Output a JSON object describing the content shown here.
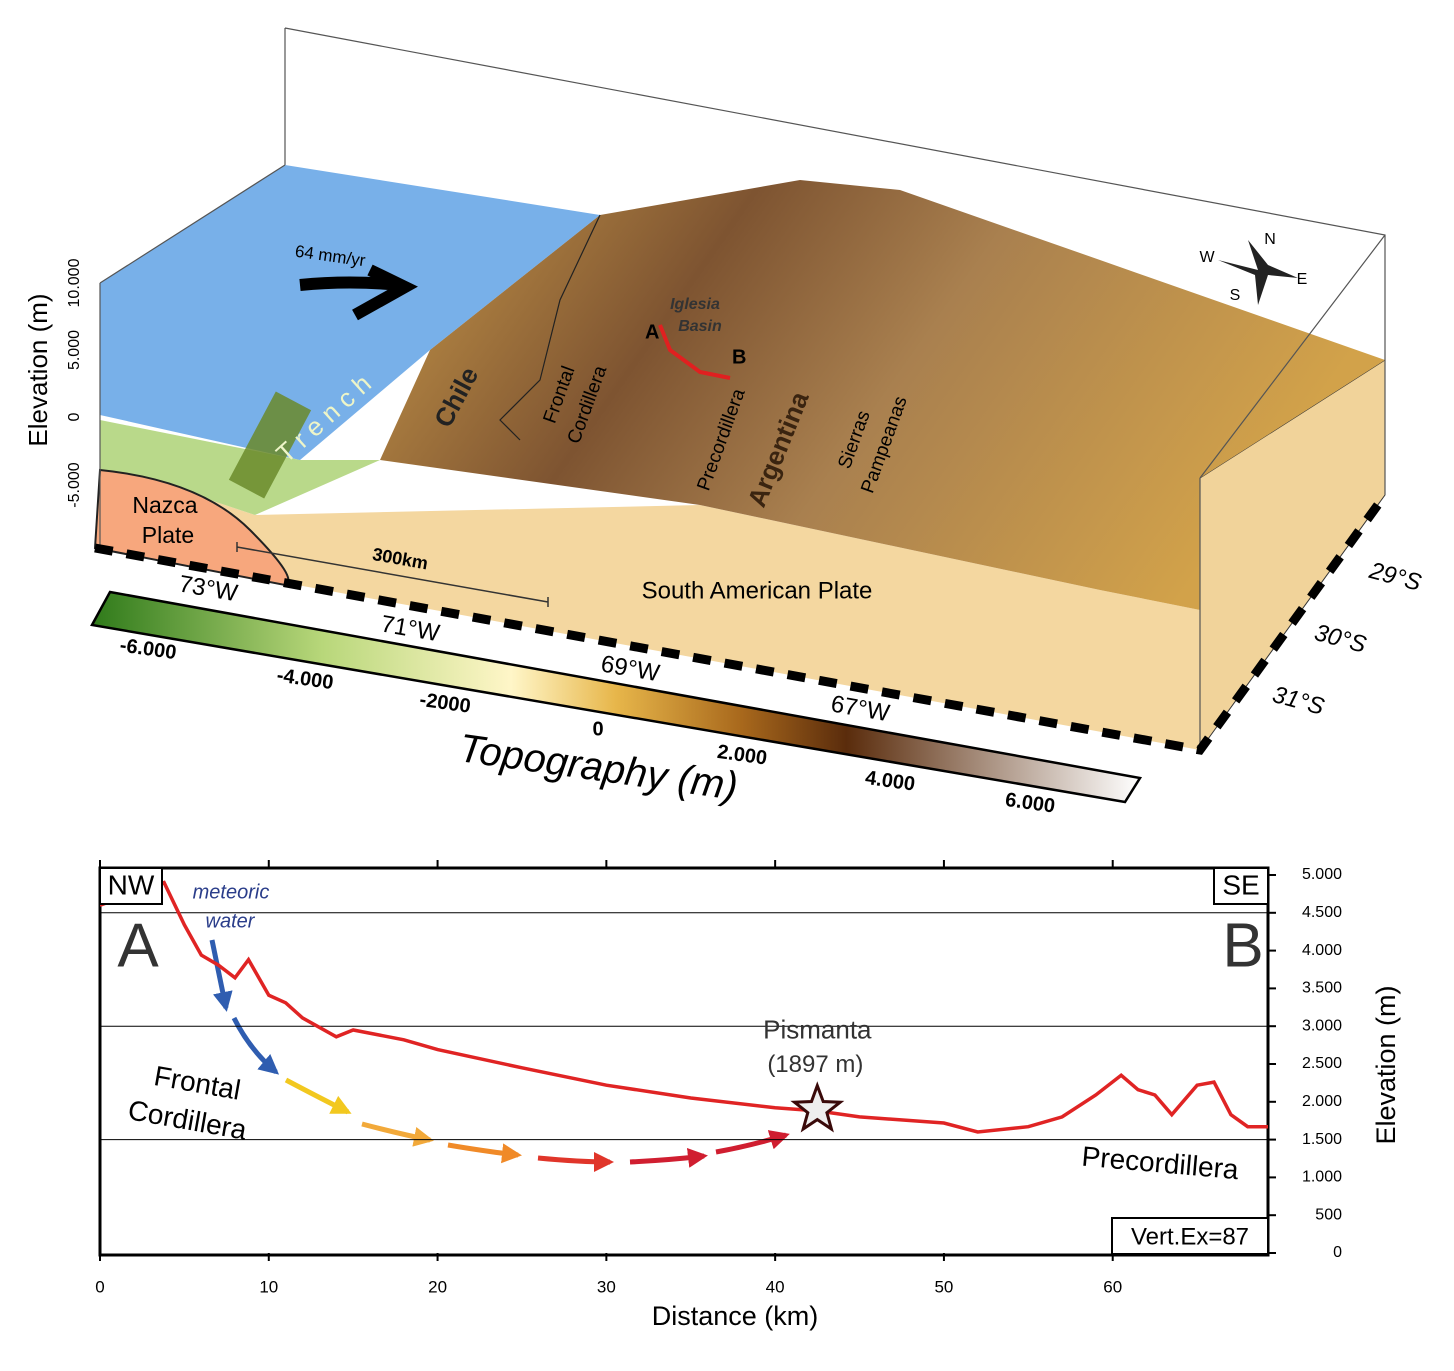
{
  "block_diagram": {
    "elevation_axis_label": "Elevation (m)",
    "elevation_ticks": [
      "10.000",
      "5.000",
      "0",
      "-5.000"
    ],
    "plate_rate": "64 mm/yr",
    "trench": "T r e n c h",
    "chile": "Chile",
    "frontal_cordillera": [
      "Frontal",
      "Cordillera"
    ],
    "iglesia_basin": [
      "Iglesia",
      "Basin"
    ],
    "point_a": "A",
    "point_b": "B",
    "precordillera": "Precordillera",
    "argentina": "Argentina",
    "sierras_pampeanas": [
      "Sierras",
      "Pampeanas"
    ],
    "nazca_plate": [
      "Nazca",
      "Plate"
    ],
    "scale_bar": "300km",
    "south_american_plate": "South American Plate",
    "longitudes": [
      "73°W",
      "71°W",
      "69°W",
      "67°W"
    ],
    "latitudes": [
      "29°S",
      "30°S",
      "31°S"
    ],
    "compass": [
      "N",
      "E",
      "S",
      "W"
    ],
    "colorbar_labels": [
      "-6.000",
      "-4.000",
      "-2000",
      "0",
      "2.000",
      "4.000",
      "6.000"
    ],
    "colorbar_title": "Topography (m)"
  },
  "chart_data": {
    "type": "line",
    "color": "#e02424",
    "x": [
      0,
      3.8,
      5,
      6,
      7,
      8,
      8.8,
      10,
      11,
      12,
      14,
      15,
      18,
      20,
      25,
      30,
      35,
      40,
      42.5,
      45,
      50,
      52,
      55,
      57,
      59,
      60.5,
      61.5,
      62.5,
      63.5,
      65,
      66,
      67,
      68,
      69.2
    ],
    "values": [
      4600,
      4900,
      4340,
      3940,
      3810,
      3640,
      3880,
      3410,
      3310,
      3110,
      2860,
      2950,
      2820,
      2690,
      2450,
      2220,
      2050,
      1920,
      1880,
      1800,
      1720,
      1600,
      1670,
      1800,
      2090,
      2350,
      2160,
      2090,
      1830,
      2220,
      2260,
      1830,
      1670,
      1670
    ],
    "xlim": [
      0,
      69.2
    ],
    "ylim": [
      0,
      5000
    ],
    "xticks": [
      0,
      10,
      20,
      30,
      40,
      50,
      60
    ],
    "yticks": [
      0,
      500,
      {
        "value": 1000,
        "label": "1.000"
      },
      {
        "value": 1500,
        "label": "1.500"
      },
      {
        "value": 2000,
        "label": "2.000"
      },
      {
        "value": 2500,
        "label": "2.500"
      },
      {
        "value": 3000,
        "label": "3.000"
      },
      {
        "value": 3500,
        "label": "3.500"
      },
      {
        "value": 4000,
        "label": "4.000"
      },
      {
        "value": 4500,
        "label": "4.500"
      },
      {
        "value": 5000,
        "label": "5.000"
      }
    ],
    "grid_lines": [
      1500,
      3000,
      4500
    ],
    "xlabel": "Distance (km)",
    "ylabel": "Elevation (m)",
    "points": [
      {
        "name": "Pismanta",
        "x": 42.5,
        "y": 1897,
        "label": "(1897 m)"
      }
    ],
    "annotations": {
      "nw": "NW",
      "se": "SE",
      "a": "A",
      "b": "B",
      "meteoric_water": [
        "meteoric",
        "water"
      ],
      "frontal_cordillera": [
        "Frontal",
        "Cordillera"
      ],
      "precordillera": "Precordillera",
      "vertical_exaggeration": "Vert.Ex=87"
    }
  }
}
